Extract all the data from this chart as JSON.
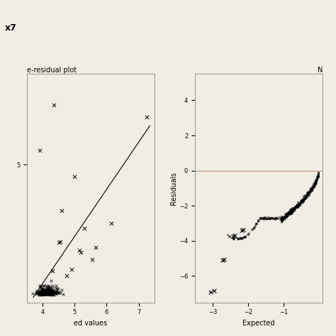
{
  "background_color": "#f0ede4",
  "left_plot": {
    "title": "e-residual plot",
    "xlabel": "ed values",
    "xlim": [
      3.5,
      7.5
    ],
    "ylim": [
      -0.3,
      8.5
    ],
    "xticks": [
      4,
      5,
      6,
      7
    ],
    "yticks": [
      5
    ],
    "line_x0": 3.7,
    "line_x1": 7.35,
    "line_y0": -0.1,
    "line_y1": 6.5
  },
  "right_plot": {
    "title": "N",
    "xlabel": "Expected",
    "ylabel": "Residuals",
    "xlim": [
      -3.5,
      0.1
    ],
    "ylim": [
      -7.5,
      5.5
    ],
    "xticks": [
      -3,
      -2,
      -1
    ],
    "yticks": [
      -6,
      -4,
      -2,
      0,
      2,
      4
    ],
    "hline_color": "#c8957a"
  },
  "fig_title": "x7"
}
